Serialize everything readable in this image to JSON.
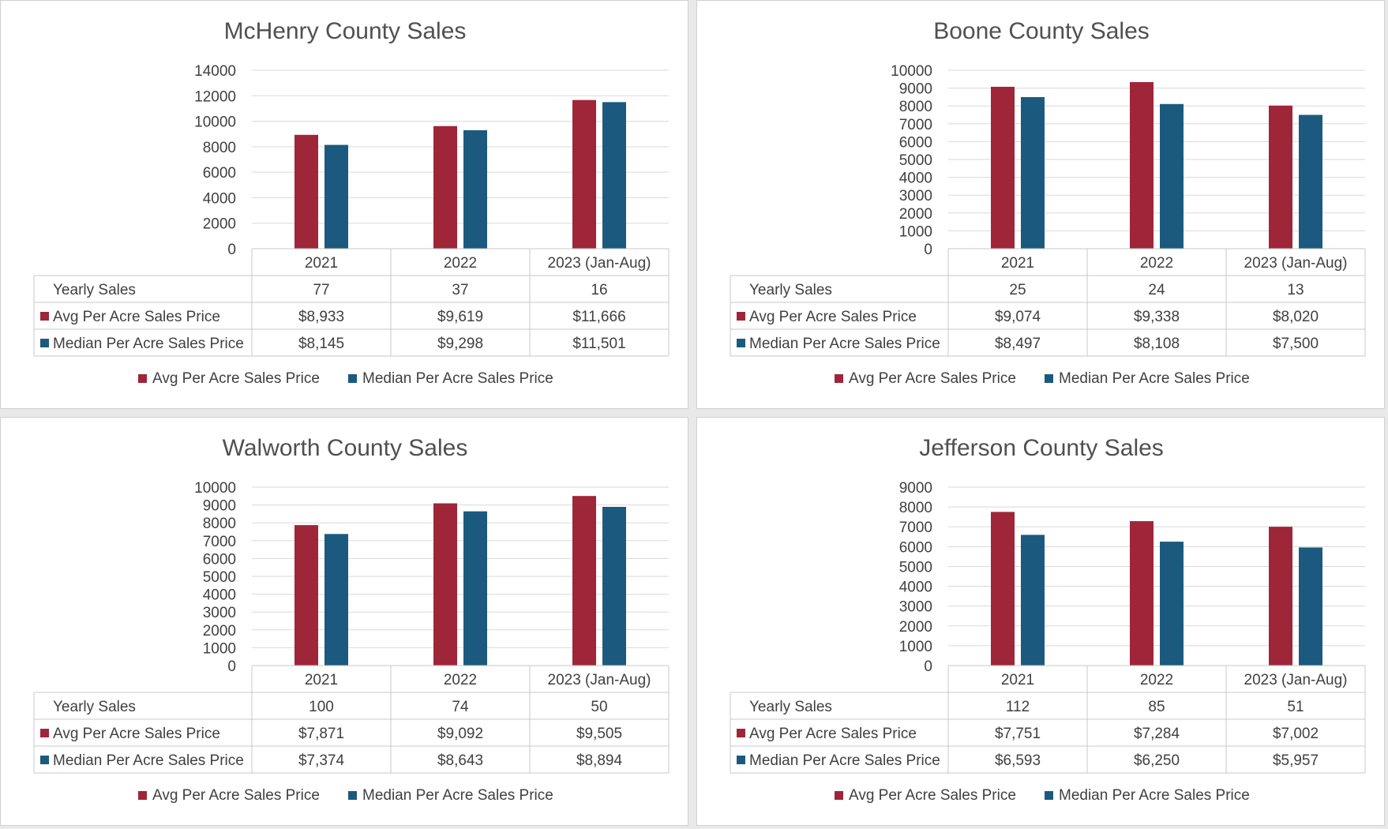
{
  "colors": {
    "avg": "#9e2638",
    "median": "#1b5a7e",
    "grid": "#d9d9d9",
    "border": "#c8c8c8"
  },
  "chart_data": [
    {
      "type": "bar",
      "title": "McHenry County Sales",
      "categories": [
        "2021",
        "2022",
        "2023 (Jan-Aug)"
      ],
      "ylim": [
        0,
        14000
      ],
      "yticks": [
        0,
        2000,
        4000,
        6000,
        8000,
        10000,
        12000,
        14000
      ],
      "row_label": "Yearly Sales",
      "yearly_sales": [
        "77",
        "37",
        "16"
      ],
      "series": [
        {
          "name": "Avg Per Acre Sales Price",
          "values": [
            8933,
            9619,
            11666
          ],
          "labels": [
            "$8,933",
            "$9,619",
            "$11,666"
          ]
        },
        {
          "name": "Median Per Acre Sales Price",
          "values": [
            8145,
            9298,
            11501
          ],
          "labels": [
            "$8,145",
            "$9,298",
            "$11,501"
          ]
        }
      ]
    },
    {
      "type": "bar",
      "title": "Boone County Sales",
      "categories": [
        "2021",
        "2022",
        "2023 (Jan-Aug)"
      ],
      "ylim": [
        0,
        10000
      ],
      "yticks": [
        0,
        1000,
        2000,
        3000,
        4000,
        5000,
        6000,
        7000,
        8000,
        9000,
        10000
      ],
      "row_label": "Yearly Sales",
      "yearly_sales": [
        "25",
        "24",
        "13"
      ],
      "series": [
        {
          "name": "Avg Per Acre Sales Price",
          "values": [
            9074,
            9338,
            8020
          ],
          "labels": [
            "$9,074",
            "$9,338",
            "$8,020"
          ]
        },
        {
          "name": "Median Per Acre Sales Price",
          "values": [
            8497,
            8108,
            7500
          ],
          "labels": [
            "$8,497",
            "$8,108",
            "$7,500"
          ]
        }
      ]
    },
    {
      "type": "bar",
      "title": "Walworth County Sales",
      "categories": [
        "2021",
        "2022",
        "2023 (Jan-Aug)"
      ],
      "ylim": [
        0,
        10000
      ],
      "yticks": [
        0,
        1000,
        2000,
        3000,
        4000,
        5000,
        6000,
        7000,
        8000,
        9000,
        10000
      ],
      "row_label": "Yearly Sales",
      "yearly_sales": [
        "100",
        "74",
        "50"
      ],
      "series": [
        {
          "name": "Avg Per Acre Sales Price",
          "values": [
            7871,
            9092,
            9505
          ],
          "labels": [
            "$7,871",
            "$9,092",
            "$9,505"
          ]
        },
        {
          "name": "Median Per Acre Sales Price",
          "values": [
            7374,
            8643,
            8894
          ],
          "labels": [
            "$7,374",
            "$8,643",
            "$8,894"
          ]
        }
      ]
    },
    {
      "type": "bar",
      "title": "Jefferson County Sales",
      "categories": [
        "2021",
        "2022",
        "2023 (Jan-Aug)"
      ],
      "ylim": [
        0,
        9000
      ],
      "yticks": [
        0,
        1000,
        2000,
        3000,
        4000,
        5000,
        6000,
        7000,
        8000,
        9000
      ],
      "row_label": "Yearly Sales",
      "yearly_sales": [
        "112",
        "85",
        "51"
      ],
      "series": [
        {
          "name": "Avg Per Acre Sales Price",
          "values": [
            7751,
            7284,
            7002
          ],
          "labels": [
            "$7,751",
            "$7,284",
            "$7,002"
          ]
        },
        {
          "name": "Median Per Acre Sales Price",
          "values": [
            6593,
            6250,
            5957
          ],
          "labels": [
            "$6,593",
            "$6,250",
            "$5,957"
          ]
        }
      ]
    }
  ]
}
